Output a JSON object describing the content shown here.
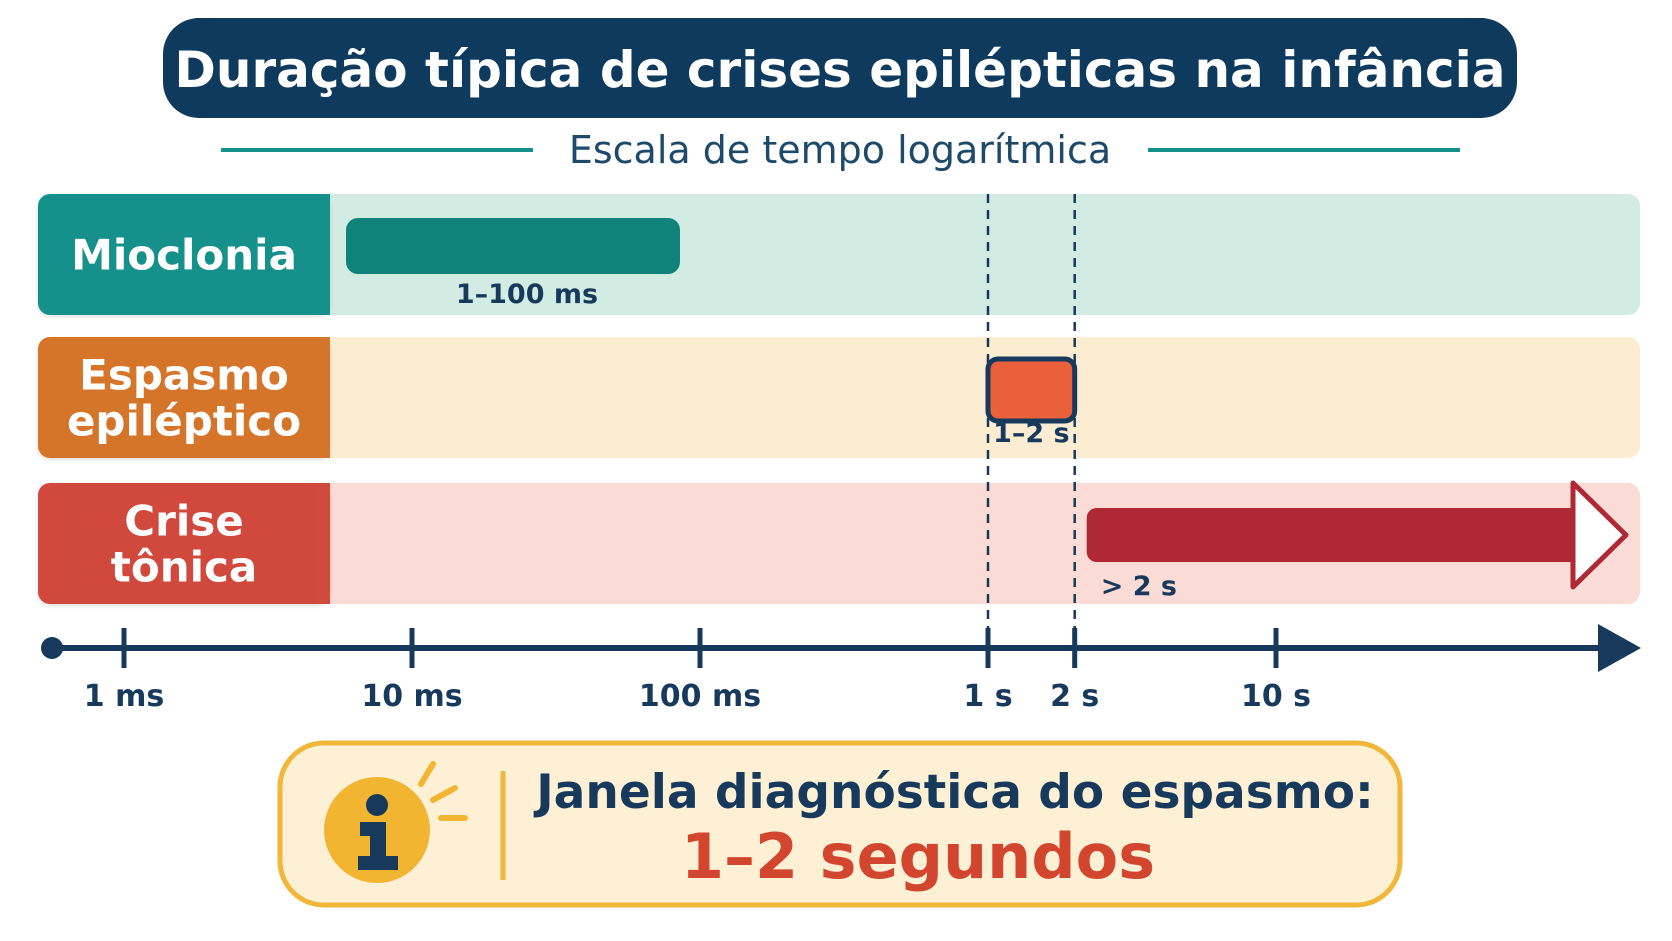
{
  "chart_data": {
    "type": "bar",
    "title": "Duração típica de crises epilépticas na infância",
    "subtitle": "Escala de tempo logarítmica",
    "x_scale": "log",
    "x_unit": "ms",
    "xlim": [
      1,
      16000
    ],
    "x_ticks": [
      {
        "value": 1,
        "label": "1 ms"
      },
      {
        "value": 10,
        "label": "10 ms"
      },
      {
        "value": 100,
        "label": "100 ms"
      },
      {
        "value": 1000,
        "label": "1 s"
      },
      {
        "value": 2000,
        "label": "2 s"
      },
      {
        "value": 10000,
        "label": "10 s"
      }
    ],
    "reference_lines": [
      1000,
      2000
    ],
    "series": [
      {
        "name": "Mioclonia",
        "start": 1,
        "end": 100,
        "open_ended": false,
        "label": "1–100 ms",
        "label_color": "#16908a",
        "band_color": "#d2ebe3",
        "bar_color": "#0f8279"
      },
      {
        "name": "Espasmo epiléptico",
        "start": 1000,
        "end": 2000,
        "open_ended": false,
        "label": "1–2 s",
        "label_color": "#d4752c",
        "band_color": "#fbecd2",
        "bar_color": "#e9603a"
      },
      {
        "name": "Crise tônica",
        "start": 2000,
        "end": null,
        "open_ended": true,
        "label": "> 2 s",
        "label_color": "#d14a3c",
        "band_color": "#fadbd5",
        "bar_color": "#ae2933"
      }
    ],
    "row_labels": [
      [
        "Mioclonia"
      ],
      [
        "Espasmo",
        "epiléptico"
      ],
      [
        "Crise",
        "tônica"
      ]
    ],
    "callout": {
      "icon": "info-icon",
      "line1": "Janela diagnóstica do espasmo:",
      "line2": "1–2 segundos"
    },
    "colors": {
      "title_bg": "#0e3a5e",
      "axis": "#173a5c",
      "accent_teal": "#16908a",
      "callout_bg": "#fdf0d4",
      "callout_border": "#f0b73a",
      "icon_bg": "#f1b532"
    }
  }
}
